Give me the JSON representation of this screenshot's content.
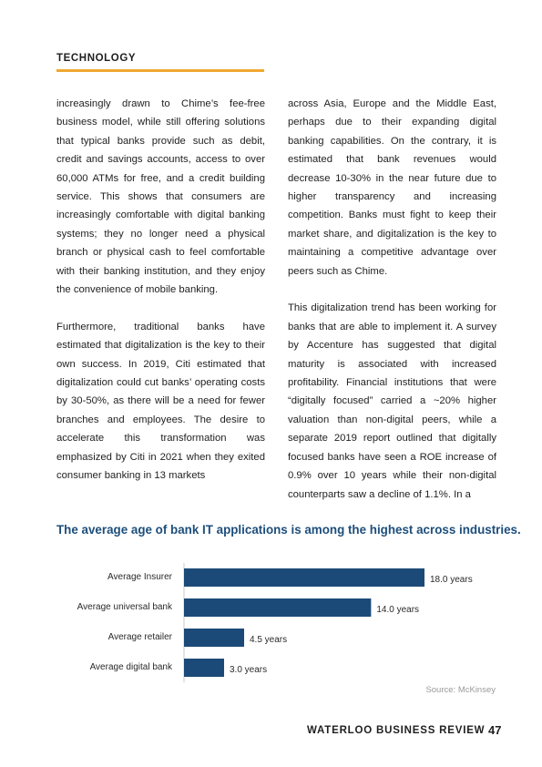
{
  "header": {
    "section": "TECHNOLOGY"
  },
  "body": {
    "left_paragraphs": [
      "increasingly drawn to Chime’s fee-free business model, while still offering solutions that typical banks provide such as debit, credit and savings accounts, access to over 60,000 ATMs for free, and a credit building service. This shows that consumers are increasingly comfortable with digital banking systems; they no longer need a physical branch or physical cash to feel comfortable with their banking institution, and they enjoy the convenience of mobile banking.",
      "Furthermore, traditional banks have estimated that digitalization is the key to their own success. In 2019, Citi estimated that digitalization could cut banks’ operating costs by 30-50%, as there will be a need for fewer branches and employees. The desire to accelerate this transformation was emphasized by Citi in 2021 when they exited consumer banking in 13 markets"
    ],
    "right_paragraphs": [
      "across Asia, Europe and the Middle East, perhaps due to their expanding digital banking capabilities. On the contrary, it is estimated that bank revenues would decrease 10-30% in the near future due to higher transparency and increasing competition. Banks must fight to keep their market share, and digitalization is the key to maintaining a competitive advantage over peers such as Chime.",
      "This digitalization trend has been working for banks that are able to implement it. A survey by Accenture has suggested that digital maturity is associated with increased profitability. Financial institutions that were “digitally focused” carried a ~20% higher valuation than non-digital peers, while a separate 2019 report outlined that digitally focused banks have seen a ROE increase of 0.9% over 10 years while their non-digital counterparts saw a decline of 1.1%. In a"
    ]
  },
  "chart_data": {
    "type": "bar",
    "orientation": "horizontal",
    "title": "The average age of bank IT applications is among the highest across industries.",
    "categories": [
      "Average Insurer",
      "Average universal bank",
      "Average retailer",
      "Average digital bank"
    ],
    "values": [
      18.0,
      14.0,
      4.5,
      3.0
    ],
    "value_labels": [
      "18.0 years",
      "14.0 years",
      "4.5 years",
      "3.0 years"
    ],
    "xlim": [
      0,
      18
    ],
    "grid": false,
    "bar_color": "#1b4a78",
    "source": "Source: McKinsey"
  },
  "footer": {
    "publication": "WATERLOO BUSINESS REVIEW",
    "page": "47"
  }
}
